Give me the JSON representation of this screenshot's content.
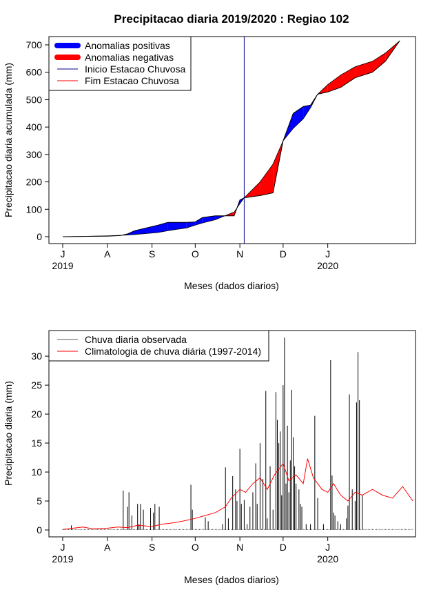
{
  "title": "Precipitacao diaria 2019/2020 : Regiao 102",
  "chart_data": [
    {
      "type": "area",
      "ylabel": "Precipitacao diaria acumulada (mm)",
      "xlabel": "Meses (dados diarios)",
      "ylim": [
        0,
        700
      ],
      "y_ticks": [
        "0",
        "100",
        "200",
        "300",
        "400",
        "500",
        "600",
        "700"
      ],
      "x_ticks": [
        "J",
        "A",
        "S",
        "O",
        "N",
        "D",
        "J"
      ],
      "x_tick_dates": [
        "2019-07-01",
        "2019-08-01",
        "2019-09-01",
        "2019-10-01",
        "2019-11-01",
        "2019-12-01",
        "2020-01-01"
      ],
      "x_range": [
        "2019-07-01",
        "2020-02-29"
      ],
      "year_labels": [
        {
          "label": "2019",
          "date": "2019-07-01"
        },
        {
          "label": "2020",
          "date": "2020-01-01"
        }
      ],
      "legend": {
        "placement": "top-left",
        "entries": [
          {
            "label": "Anomalias positivas",
            "color": "#0000ff",
            "style": "thick"
          },
          {
            "label": "Anomalias negativas",
            "color": "#ff0000",
            "style": "thick"
          },
          {
            "label": "Inicio Estacao Chuvosa",
            "color": "#00008b",
            "style": "line"
          },
          {
            "label": "Fim Estacao Chuvosa",
            "color": "#ff0000",
            "style": "line"
          }
        ]
      },
      "rainy_season_start": "2019-11-04",
      "observed_cumulative": [
        {
          "date": "2019-07-01",
          "value": 0
        },
        {
          "date": "2019-07-15",
          "value": 1
        },
        {
          "date": "2019-08-01",
          "value": 2
        },
        {
          "date": "2019-08-10",
          "value": 4
        },
        {
          "date": "2019-08-15",
          "value": 10
        },
        {
          "date": "2019-08-20",
          "value": 22
        },
        {
          "date": "2019-09-05",
          "value": 42
        },
        {
          "date": "2019-09-12",
          "value": 52
        },
        {
          "date": "2019-09-25",
          "value": 52
        },
        {
          "date": "2019-10-01",
          "value": 54
        },
        {
          "date": "2019-10-06",
          "value": 70
        },
        {
          "date": "2019-10-15",
          "value": 76
        },
        {
          "date": "2019-10-28",
          "value": 76
        },
        {
          "date": "2019-11-01",
          "value": 134
        },
        {
          "date": "2019-11-04",
          "value": 142
        },
        {
          "date": "2019-11-15",
          "value": 150
        },
        {
          "date": "2019-11-24",
          "value": 160
        },
        {
          "date": "2019-12-01",
          "value": 350
        },
        {
          "date": "2019-12-08",
          "value": 450
        },
        {
          "date": "2019-12-15",
          "value": 475
        },
        {
          "date": "2019-12-20",
          "value": 480
        },
        {
          "date": "2019-12-25",
          "value": 520
        },
        {
          "date": "2020-01-01",
          "value": 528
        },
        {
          "date": "2020-01-10",
          "value": 545
        },
        {
          "date": "2020-01-20",
          "value": 580
        },
        {
          "date": "2020-02-01",
          "value": 600
        },
        {
          "date": "2020-02-10",
          "value": 640
        },
        {
          "date": "2020-02-20",
          "value": 715
        }
      ],
      "climatology_cumulative": [
        {
          "date": "2019-07-01",
          "value": 0
        },
        {
          "date": "2019-07-15",
          "value": 1
        },
        {
          "date": "2019-08-01",
          "value": 3
        },
        {
          "date": "2019-08-10",
          "value": 5
        },
        {
          "date": "2019-08-15",
          "value": 6
        },
        {
          "date": "2019-08-20",
          "value": 8
        },
        {
          "date": "2019-09-05",
          "value": 15
        },
        {
          "date": "2019-09-12",
          "value": 22
        },
        {
          "date": "2019-09-25",
          "value": 32
        },
        {
          "date": "2019-10-01",
          "value": 42
        },
        {
          "date": "2019-10-06",
          "value": 50
        },
        {
          "date": "2019-10-15",
          "value": 62
        },
        {
          "date": "2019-10-28",
          "value": 90
        },
        {
          "date": "2019-11-01",
          "value": 120
        },
        {
          "date": "2019-11-04",
          "value": 142
        },
        {
          "date": "2019-11-15",
          "value": 200
        },
        {
          "date": "2019-11-24",
          "value": 265
        },
        {
          "date": "2019-12-01",
          "value": 350
        },
        {
          "date": "2019-12-08",
          "value": 395
        },
        {
          "date": "2019-12-15",
          "value": 430
        },
        {
          "date": "2019-12-20",
          "value": 470
        },
        {
          "date": "2019-12-25",
          "value": 520
        },
        {
          "date": "2020-01-01",
          "value": 555
        },
        {
          "date": "2020-01-10",
          "value": 590
        },
        {
          "date": "2020-01-20",
          "value": 620
        },
        {
          "date": "2020-02-01",
          "value": 640
        },
        {
          "date": "2020-02-10",
          "value": 670
        },
        {
          "date": "2020-02-20",
          "value": 715
        }
      ]
    },
    {
      "type": "bar",
      "ylabel": "Precipitacao diaria (mm)",
      "xlabel": "Meses (dados diarios)",
      "ylim": [
        0,
        33
      ],
      "y_ticks": [
        "0",
        "5",
        "10",
        "15",
        "20",
        "25",
        "30"
      ],
      "x_ticks": [
        "J",
        "A",
        "S",
        "O",
        "N",
        "D",
        "J"
      ],
      "x_tick_dates": [
        "2019-07-01",
        "2019-08-01",
        "2019-09-01",
        "2019-10-01",
        "2019-11-01",
        "2019-12-01",
        "2020-01-01"
      ],
      "x_range": [
        "2019-07-01",
        "2020-02-29"
      ],
      "year_labels": [
        {
          "label": "2019",
          "date": "2019-07-01"
        },
        {
          "label": "2020",
          "date": "2020-01-01"
        }
      ],
      "legend": {
        "placement": "top-left",
        "entries": [
          {
            "label": "Chuva diaria observada",
            "color": "#555555",
            "style": "line"
          },
          {
            "label": "Climatologia de chuva diária (1997-2014)",
            "color": "#ff0000",
            "style": "line"
          }
        ]
      },
      "series": [
        {
          "name": "Chuva diaria observada",
          "type": "bar",
          "points": [
            {
              "date": "2019-07-07",
              "value": 0.8
            },
            {
              "date": "2019-08-12",
              "value": 6.8
            },
            {
              "date": "2019-08-15",
              "value": 4
            },
            {
              "date": "2019-08-16",
              "value": 6.5
            },
            {
              "date": "2019-08-18",
              "value": 2.5
            },
            {
              "date": "2019-08-22",
              "value": 4.5
            },
            {
              "date": "2019-08-23",
              "value": 1
            },
            {
              "date": "2019-08-24",
              "value": 4.5
            },
            {
              "date": "2019-08-26",
              "value": 3.5
            },
            {
              "date": "2019-08-31",
              "value": 3.8
            },
            {
              "date": "2019-09-02",
              "value": 3
            },
            {
              "date": "2019-09-03",
              "value": 4.5
            },
            {
              "date": "2019-09-06",
              "value": 4
            },
            {
              "date": "2019-09-28",
              "value": 7.8
            },
            {
              "date": "2019-09-29",
              "value": 3.5
            },
            {
              "date": "2019-10-08",
              "value": 2.2
            },
            {
              "date": "2019-10-10",
              "value": 1.5
            },
            {
              "date": "2019-10-20",
              "value": 1
            },
            {
              "date": "2019-10-22",
              "value": 10.8
            },
            {
              "date": "2019-10-24",
              "value": 2
            },
            {
              "date": "2019-10-27",
              "value": 9.3
            },
            {
              "date": "2019-10-29",
              "value": 7
            },
            {
              "date": "2019-10-30",
              "value": 5
            },
            {
              "date": "2019-11-01",
              "value": 14
            },
            {
              "date": "2019-11-02",
              "value": 4.5
            },
            {
              "date": "2019-11-04",
              "value": 5.2
            },
            {
              "date": "2019-11-06",
              "value": 1
            },
            {
              "date": "2019-11-08",
              "value": 4
            },
            {
              "date": "2019-11-10",
              "value": 6.5
            },
            {
              "date": "2019-11-12",
              "value": 11.5
            },
            {
              "date": "2019-11-13",
              "value": 4.5
            },
            {
              "date": "2019-11-15",
              "value": 15
            },
            {
              "date": "2019-11-17",
              "value": 8.8
            },
            {
              "date": "2019-11-19",
              "value": 24
            },
            {
              "date": "2019-11-20",
              "value": 2
            },
            {
              "date": "2019-11-22",
              "value": 11
            },
            {
              "date": "2019-11-24",
              "value": 3.5
            },
            {
              "date": "2019-11-26",
              "value": 23.8
            },
            {
              "date": "2019-11-27",
              "value": 19
            },
            {
              "date": "2019-11-28",
              "value": 15
            },
            {
              "date": "2019-11-29",
              "value": 17
            },
            {
              "date": "2019-11-30",
              "value": 6
            },
            {
              "date": "2019-12-01",
              "value": 25
            },
            {
              "date": "2019-12-02",
              "value": 33.2
            },
            {
              "date": "2019-12-03",
              "value": 8
            },
            {
              "date": "2019-12-04",
              "value": 18
            },
            {
              "date": "2019-12-05",
              "value": 6.5
            },
            {
              "date": "2019-12-06",
              "value": 12
            },
            {
              "date": "2019-12-07",
              "value": 24.2
            },
            {
              "date": "2019-12-08",
              "value": 16
            },
            {
              "date": "2019-12-09",
              "value": 11
            },
            {
              "date": "2019-12-10",
              "value": 8
            },
            {
              "date": "2019-12-12",
              "value": 7
            },
            {
              "date": "2019-12-13",
              "value": 4.5
            },
            {
              "date": "2019-12-14",
              "value": 4
            },
            {
              "date": "2019-12-17",
              "value": 1
            },
            {
              "date": "2019-12-20",
              "value": 1
            },
            {
              "date": "2019-12-23",
              "value": 19.7
            },
            {
              "date": "2019-12-25",
              "value": 5.5
            },
            {
              "date": "2019-12-29",
              "value": 1
            },
            {
              "date": "2020-01-03",
              "value": 29.3
            },
            {
              "date": "2020-01-04",
              "value": 9.4
            },
            {
              "date": "2020-01-05",
              "value": 3
            },
            {
              "date": "2020-01-06",
              "value": 2.5
            },
            {
              "date": "2020-01-08",
              "value": 1.5
            },
            {
              "date": "2020-01-10",
              "value": 1
            },
            {
              "date": "2020-01-14",
              "value": 2
            },
            {
              "date": "2020-01-15",
              "value": 4.2
            },
            {
              "date": "2020-01-16",
              "value": 23.4
            },
            {
              "date": "2020-01-18",
              "value": 7
            },
            {
              "date": "2020-01-20",
              "value": 5
            },
            {
              "date": "2020-01-21",
              "value": 22
            },
            {
              "date": "2020-01-22",
              "value": 30.7
            },
            {
              "date": "2020-01-23",
              "value": 22.4
            },
            {
              "date": "2020-01-25",
              "value": 6
            }
          ]
        },
        {
          "name": "Climatologia de chuva diária (1997-2014)",
          "type": "line",
          "points": [
            {
              "date": "2019-07-01",
              "value": 0.1
            },
            {
              "date": "2019-07-08",
              "value": 0.3
            },
            {
              "date": "2019-07-15",
              "value": 0.5
            },
            {
              "date": "2019-07-22",
              "value": 0.2
            },
            {
              "date": "2019-08-01",
              "value": 0.3
            },
            {
              "date": "2019-08-08",
              "value": 0.5
            },
            {
              "date": "2019-08-15",
              "value": 0.4
            },
            {
              "date": "2019-08-22",
              "value": 0.8
            },
            {
              "date": "2019-09-01",
              "value": 0.6
            },
            {
              "date": "2019-09-08",
              "value": 1
            },
            {
              "date": "2019-09-15",
              "value": 1.2
            },
            {
              "date": "2019-09-22",
              "value": 1.5
            },
            {
              "date": "2019-10-01",
              "value": 2
            },
            {
              "date": "2019-10-08",
              "value": 2.5
            },
            {
              "date": "2019-10-15",
              "value": 3
            },
            {
              "date": "2019-10-22",
              "value": 4
            },
            {
              "date": "2019-10-26",
              "value": 5.5
            },
            {
              "date": "2019-11-01",
              "value": 7
            },
            {
              "date": "2019-11-05",
              "value": 6.5
            },
            {
              "date": "2019-11-10",
              "value": 8
            },
            {
              "date": "2019-11-15",
              "value": 9
            },
            {
              "date": "2019-11-20",
              "value": 7
            },
            {
              "date": "2019-11-25",
              "value": 9.5
            },
            {
              "date": "2019-12-01",
              "value": 11.5
            },
            {
              "date": "2019-12-05",
              "value": 8.5
            },
            {
              "date": "2019-12-10",
              "value": 9.5
            },
            {
              "date": "2019-12-15",
              "value": 8
            },
            {
              "date": "2019-12-18",
              "value": 12.3
            },
            {
              "date": "2019-12-22",
              "value": 9
            },
            {
              "date": "2019-12-28",
              "value": 7
            },
            {
              "date": "2020-01-01",
              "value": 6.5
            },
            {
              "date": "2020-01-05",
              "value": 8
            },
            {
              "date": "2020-01-10",
              "value": 6
            },
            {
              "date": "2020-01-15",
              "value": 5
            },
            {
              "date": "2020-01-20",
              "value": 6.5
            },
            {
              "date": "2020-01-25",
              "value": 6
            },
            {
              "date": "2020-02-01",
              "value": 7
            },
            {
              "date": "2020-02-08",
              "value": 6
            },
            {
              "date": "2020-02-15",
              "value": 5.5
            },
            {
              "date": "2020-02-22",
              "value": 7.5
            },
            {
              "date": "2020-02-29",
              "value": 5
            }
          ]
        }
      ]
    }
  ]
}
